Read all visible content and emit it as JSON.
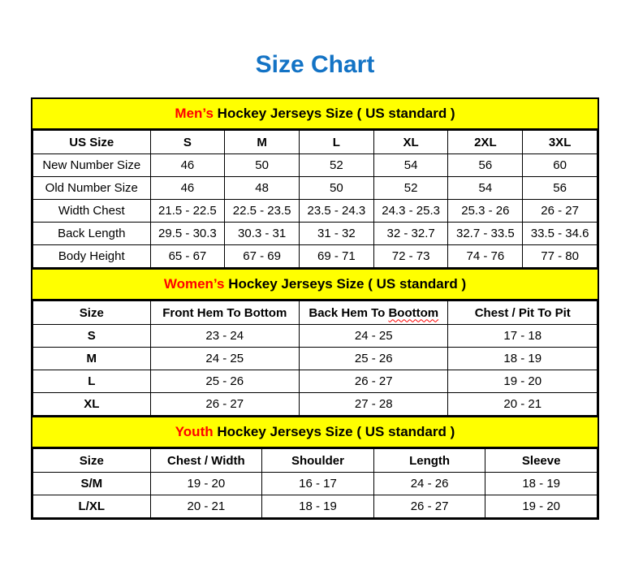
{
  "page": {
    "title": "Size Chart"
  },
  "colors": {
    "title_blue": "#1373C5",
    "band_yellow": "#FFFF00",
    "highlight_red": "#FF0000",
    "border_black": "#000000",
    "background_white": "#FFFFFF"
  },
  "chart_data": [
    {
      "type": "table",
      "title": "Men’s Hockey Jerseys Size ( US standard )",
      "title_highlight": "Men’s",
      "title_rest": " Hockey Jerseys Size ( US standard )",
      "columns": [
        "US Size",
        "S",
        "M",
        "L",
        "XL",
        "2XL",
        "3XL"
      ],
      "rows": [
        [
          "New Number Size",
          "46",
          "50",
          "52",
          "54",
          "56",
          "60"
        ],
        [
          "Old Number Size",
          "46",
          "48",
          "50",
          "52",
          "54",
          "56"
        ],
        [
          "Width Chest",
          "21.5 - 22.5",
          "22.5 - 23.5",
          "23.5 - 24.3",
          "24.3 - 25.3",
          "25.3 - 26",
          "26 - 27"
        ],
        [
          "Back Length",
          "29.5 - 30.3",
          "30.3 - 31",
          "31 - 32",
          "32 - 32.7",
          "32.7 - 33.5",
          "33.5 - 34.6"
        ],
        [
          "Body Height",
          "65 - 67",
          "67 - 69",
          "69 - 71",
          "72 - 73",
          "74 - 76",
          "77 - 80"
        ]
      ],
      "bold_row_labels": false
    },
    {
      "type": "table",
      "title": "Women’s Hockey Jerseys Size ( US standard )",
      "title_highlight": "Women’s",
      "title_rest": " Hockey Jerseys Size ( US standard )",
      "columns": [
        "Size",
        "Front Hem To Bottom",
        "Back Hem To Boottom",
        "Chest / Pit To Pit"
      ],
      "typo": {
        "column_index": 2,
        "prefix": "Back Hem To ",
        "word": "Boottom"
      },
      "rows": [
        [
          "S",
          "23 - 24",
          "24 - 25",
          "17 - 18"
        ],
        [
          "M",
          "24 - 25",
          "25 - 26",
          "18 - 19"
        ],
        [
          "L",
          "25 - 26",
          "26 - 27",
          "19 - 20"
        ],
        [
          "XL",
          "26 - 27",
          "27 - 28",
          "20 - 21"
        ]
      ],
      "bold_row_labels": true
    },
    {
      "type": "table",
      "title": "Youth Hockey Jerseys Size ( US standard )",
      "title_highlight": "Youth",
      "title_rest": " Hockey Jerseys Size ( US standard )",
      "columns": [
        "Size",
        "Chest / Width",
        "Shoulder",
        "Length",
        "Sleeve"
      ],
      "rows": [
        [
          "S/M",
          "19 - 20",
          "16 - 17",
          "24 - 26",
          "18 - 19"
        ],
        [
          "L/XL",
          "20 - 21",
          "18 - 19",
          "26 - 27",
          "19 - 20"
        ]
      ],
      "bold_row_labels": true
    }
  ]
}
